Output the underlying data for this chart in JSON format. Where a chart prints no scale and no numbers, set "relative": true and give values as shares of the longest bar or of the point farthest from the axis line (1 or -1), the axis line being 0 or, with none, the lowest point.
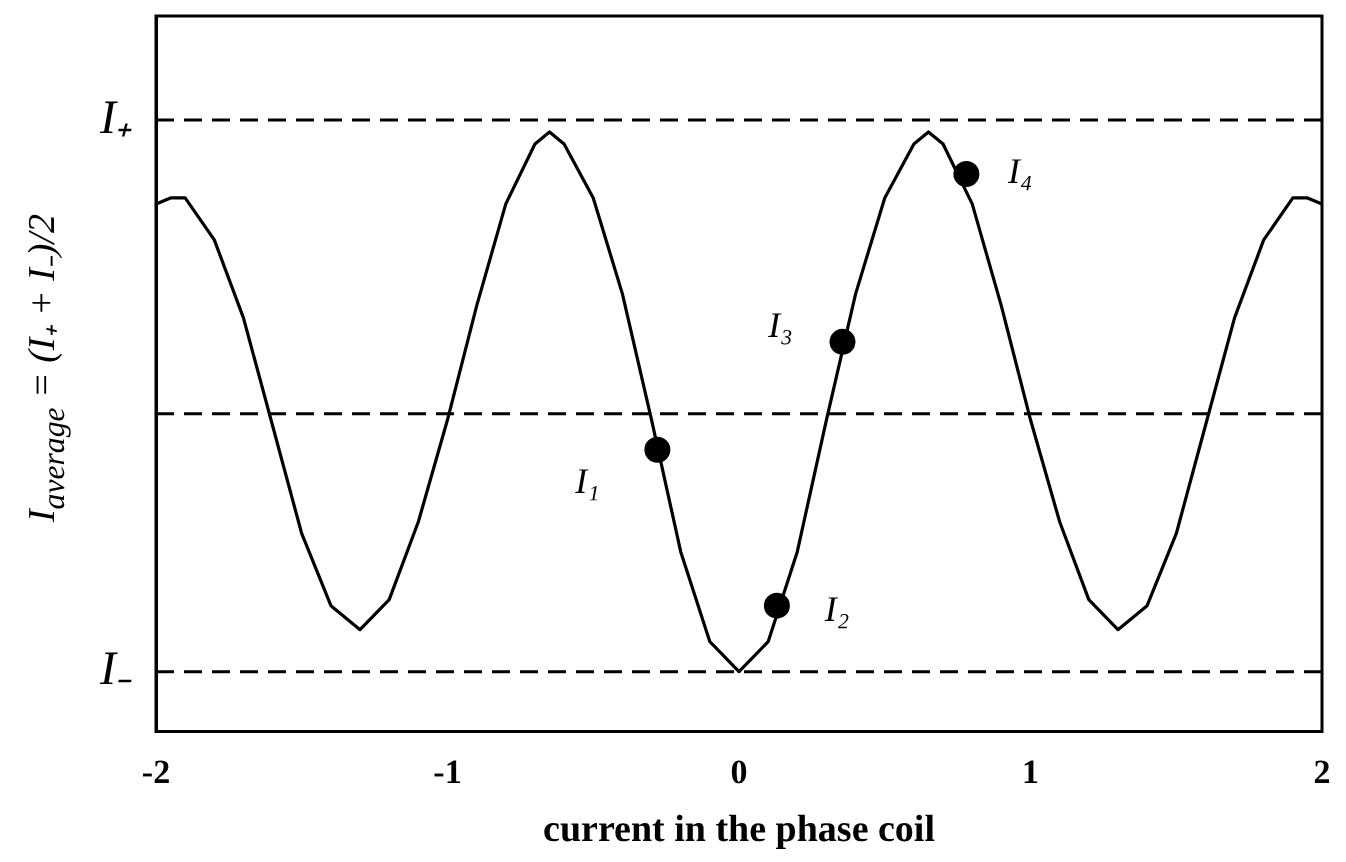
{
  "chart_data": {
    "type": "line",
    "relative": true,
    "xlabel": "current in the phase coil",
    "ylabel": "I$_{average}$ = (I₊ + I₋)/2",
    "xlim": [
      -2,
      2
    ],
    "xticks": [
      -2,
      -1,
      0,
      1,
      2
    ],
    "grid": false,
    "legend": false,
    "series": [
      {
        "color": "#000000",
        "marker": "none",
        "x": [
          -2,
          -1.95,
          -1.9,
          -1.8,
          -1.7,
          -1.6,
          -1.5,
          -1.4,
          -1.3,
          -1.2,
          -1.1,
          -1,
          -0.9,
          -0.8,
          -0.7,
          -0.65,
          -0.6,
          -0.5,
          -0.4,
          -0.3,
          -0.2,
          -0.1,
          0,
          0.1,
          0.2,
          0.3,
          0.4,
          0.5,
          0.6,
          0.65,
          0.7,
          0.8,
          0.9,
          1,
          1.1,
          1.2,
          1.3,
          1.4,
          1.5,
          1.6,
          1.7,
          1.8,
          1.9,
          1.95,
          2
        ],
        "values": [
          0.88,
          0.89,
          0.89,
          0.82,
          0.69,
          0.51,
          0.33,
          0.21,
          0.17,
          0.22,
          0.35,
          0.52,
          0.71,
          0.88,
          0.98,
          1,
          0.98,
          0.89,
          0.73,
          0.52,
          0.3,
          0.15,
          0.1,
          0.15,
          0.3,
          0.52,
          0.73,
          0.89,
          0.98,
          1,
          0.98,
          0.88,
          0.71,
          0.52,
          0.35,
          0.22,
          0.17,
          0.21,
          0.33,
          0.51,
          0.69,
          0.82,
          0.89,
          0.89,
          0.88
        ]
      },
      {
        "type": "scatter",
        "color": "#000000",
        "marker": "circle",
        "x": [
          -0.28,
          0.13,
          0.355,
          0.78
        ],
        "values": [
          0.47,
          0.21,
          0.65,
          0.93
        ]
      }
    ],
    "ref_lines": [
      {
        "axis": "y",
        "value": 1.02,
        "label": "I₊",
        "line_style": "dashed",
        "color": "#000000"
      },
      {
        "axis": "y",
        "value": 0.53,
        "line_style": "dashed",
        "color": "#000000"
      },
      {
        "axis": "y",
        "value": 0.1,
        "label": "I₋",
        "line_style": "dashed",
        "color": "#000000"
      }
    ],
    "annotations": [
      "I₁",
      "I₂",
      "I₃",
      "I₄"
    ]
  }
}
